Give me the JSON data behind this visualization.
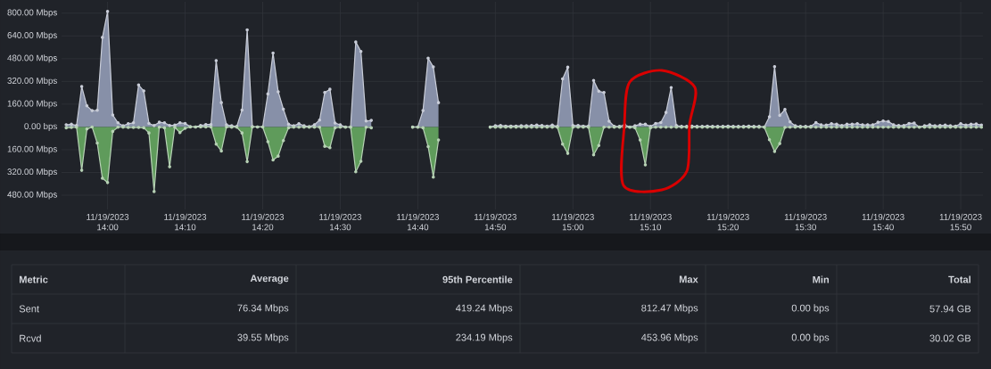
{
  "chart_data": {
    "type": "area",
    "categories": [
      null,
      null,
      null,
      null,
      null,
      null,
      null,
      null,
      "11/19/2023 14:00",
      null,
      null,
      null,
      null,
      null,
      null,
      null,
      null,
      null,
      null,
      null,
      null,
      null,
      null,
      "11/19/2023 14:10",
      null,
      null,
      null,
      null,
      null,
      null,
      null,
      null,
      null,
      null,
      null,
      null,
      null,
      null,
      "11/19/2023 14:20",
      null,
      null,
      null,
      null,
      null,
      null,
      null,
      null,
      null,
      null,
      null,
      null,
      null,
      null,
      "11/19/2023 14:30",
      null,
      null,
      null,
      null,
      null,
      null,
      null,
      null,
      null,
      null,
      null,
      null,
      null,
      null,
      "11/19/2023 14:40",
      null,
      null,
      null,
      null,
      null,
      null,
      null,
      null,
      null,
      null,
      null,
      null,
      null,
      null,
      "11/19/2023 14:50",
      null,
      null,
      null,
      null,
      null,
      null,
      null,
      null,
      null,
      null,
      null,
      null,
      null,
      null,
      "11/19/2023 15:00",
      null,
      null,
      null,
      null,
      null,
      null,
      null,
      null,
      null,
      null,
      null,
      null,
      null,
      null,
      "11/19/2023 15:10",
      null,
      null,
      null,
      null,
      null,
      null,
      null,
      null,
      null,
      null,
      null,
      null,
      null,
      null,
      "11/19/2023 15:20",
      null,
      null,
      null,
      null,
      null,
      null,
      null,
      null,
      null,
      null,
      null,
      null,
      null,
      null,
      "11/19/2023 15:30",
      null,
      null,
      null,
      null,
      null,
      null,
      null,
      null,
      null,
      null,
      null,
      null,
      null,
      null,
      "11/19/2023 15:40",
      null,
      null,
      null,
      null,
      null,
      null,
      null,
      null,
      null,
      null,
      null,
      null,
      null,
      null,
      "11/19/2023 15:50",
      null,
      null,
      null,
      null
    ],
    "series": [
      {
        "color": "#8790a8",
        "values": [
          15,
          19,
          10,
          284,
          148,
          115,
          117,
          629,
          812,
          84,
          29,
          8,
          23,
          29,
          295,
          253,
          25,
          10,
          33,
          29,
          10,
          13,
          29,
          25,
          2,
          0,
          10,
          17,
          17,
          466,
          171,
          15,
          8,
          4,
          119,
          683,
          2,
          0,
          0,
          232,
          520,
          247,
          125,
          19,
          8,
          23,
          8,
          2,
          15,
          48,
          242,
          265,
          27,
          15,
          0,
          0,
          597,
          531,
          42,
          46,
          null,
          null,
          null,
          null,
          null,
          null,
          null,
          0,
          0,
          115,
          484,
          422,
          171,
          null,
          null,
          null,
          null,
          null,
          null,
          null,
          null,
          null,
          0,
          8,
          10,
          6,
          6,
          6,
          8,
          8,
          10,
          13,
          10,
          6,
          13,
          4,
          338,
          420,
          10,
          10,
          6,
          6,
          327,
          251,
          242,
          40,
          4,
          4,
          15,
          0,
          8,
          19,
          19,
          4,
          25,
          31,
          102,
          277,
          10,
          4,
          4,
          6,
          4,
          4,
          6,
          4,
          4,
          4,
          6,
          4,
          4,
          4,
          6,
          4,
          4,
          0,
          71,
          424,
          81,
          123,
          36,
          8,
          4,
          4,
          4,
          31,
          15,
          13,
          23,
          19,
          10,
          19,
          19,
          23,
          15,
          15,
          15,
          33,
          42,
          38,
          15,
          10,
          10,
          25,
          27,
          0,
          8,
          15,
          8,
          10,
          13,
          8,
          6,
          23,
          13,
          19,
          21,
          13
        ]
      },
      {
        "color": "#5f9b5b",
        "values": [
          -6,
          -4,
          -2,
          -305,
          -15,
          0,
          -113,
          -361,
          -391,
          -31,
          -2,
          -2,
          -4,
          -4,
          -4,
          -6,
          -42,
          -454,
          -2,
          -6,
          -280,
          -2,
          -40,
          -10,
          0,
          0,
          0,
          0,
          0,
          -121,
          -169,
          0,
          -2,
          -2,
          -42,
          -244,
          0,
          0,
          0,
          -104,
          -232,
          -205,
          -96,
          -6,
          -2,
          -2,
          -2,
          -2,
          -2,
          -2,
          -136,
          -146,
          -6,
          -2,
          -2,
          -2,
          -315,
          -242,
          -2,
          -6,
          null,
          null,
          null,
          null,
          null,
          null,
          null,
          -2,
          -2,
          -6,
          -138,
          -353,
          -92,
          null,
          null,
          null,
          null,
          null,
          null,
          null,
          null,
          null,
          -2,
          -2,
          -2,
          -2,
          -2,
          -2,
          -2,
          -2,
          -2,
          -2,
          -2,
          -2,
          -2,
          -2,
          -121,
          -186,
          -2,
          -2,
          -2,
          -2,
          -196,
          -130,
          -2,
          -2,
          -2,
          -2,
          -2,
          -2,
          -6,
          -92,
          -267,
          -6,
          -2,
          -2,
          -2,
          -2,
          -2,
          -2,
          -2,
          -2,
          -2,
          -2,
          -2,
          -2,
          -2,
          -2,
          -2,
          -2,
          -2,
          -2,
          -2,
          -2,
          -2,
          -2,
          -90,
          -173,
          -117,
          -4,
          -2,
          -2,
          -2,
          -2,
          -2,
          -2,
          -2,
          -2,
          -2,
          -2,
          -2,
          -2,
          -2,
          -2,
          -2,
          -2,
          -2,
          -2,
          -2,
          -2,
          -2,
          -2,
          -2,
          -2,
          -2,
          -2,
          -2,
          -2,
          -2,
          -2,
          -2,
          -2,
          -2,
          -2,
          -2,
          -2,
          -2,
          -2
        ]
      }
    ],
    "ylim": [
      -580,
      880
    ],
    "yticks": [
      {
        "value": 800,
        "label": "800.00 Mbps"
      },
      {
        "value": 640,
        "label": "640.00 Mbps"
      },
      {
        "value": 480,
        "label": "480.00 Mbps"
      },
      {
        "value": 320,
        "label": "320.00 Mbps"
      },
      {
        "value": 160,
        "label": "160.00 Mbps"
      },
      {
        "value": 0,
        "label": "0.00 bps"
      },
      {
        "value": -160,
        "label": "160.00 Mbps"
      },
      {
        "value": -320,
        "label": "320.00 Mbps"
      },
      {
        "value": -480,
        "label": "480.00 Mbps"
      }
    ],
    "grid": true,
    "marker": "circle",
    "line_style": "solid",
    "annotations": [
      "Metric",
      "Average",
      "95th Percentile",
      "Max",
      "Min",
      "Total",
      "Sent",
      "76.34 Mbps",
      "419.24 Mbps",
      "812.47 Mbps",
      "0.00 bps",
      "57.94 GB",
      "Rcvd",
      "39.55 Mbps",
      "234.19 Mbps",
      "453.96 Mbps",
      "0.00 bps",
      "30.02 GB"
    ]
  }
}
